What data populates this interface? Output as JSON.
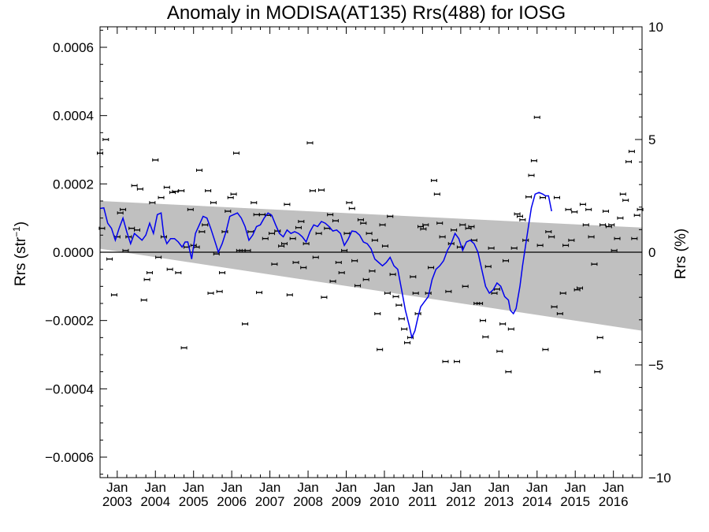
{
  "chart_data": {
    "type": "scatter",
    "title": "Anomaly in MODISA(AT135) Rrs(488) for IOSG",
    "ylabel_left_main": "Rrs (str",
    "ylabel_left_sup": "−1",
    "ylabel_left_close": ")",
    "ylabel_right": "Rrs (%)",
    "ylim_left": [
      -0.00066,
      0.00066
    ],
    "ylim_right": [
      -10,
      10
    ],
    "xlim": [
      2002.55,
      2016.75
    ],
    "left_ticks": [
      {
        "v": 0.0006,
        "label": "0.0006"
      },
      {
        "v": 0.0004,
        "label": "0.0004"
      },
      {
        "v": 0.0002,
        "label": "0.0002"
      },
      {
        "v": 0.0,
        "label": "0.0000"
      },
      {
        "v": -0.0002,
        "label": "−0.0002"
      },
      {
        "v": -0.0004,
        "label": "−0.0004"
      },
      {
        "v": -0.0006,
        "label": "−0.0006"
      }
    ],
    "right_ticks": [
      {
        "v": 10,
        "label": "10"
      },
      {
        "v": 5,
        "label": "5"
      },
      {
        "v": 0,
        "label": "0"
      },
      {
        "v": -5,
        "label": "−5"
      },
      {
        "v": -10,
        "label": "−10"
      }
    ],
    "x_ticks": [
      {
        "v": 2003,
        "month": "Jan",
        "year": "2003"
      },
      {
        "v": 2004,
        "month": "Jan",
        "year": "2004"
      },
      {
        "v": 2005,
        "month": "Jan",
        "year": "2005"
      },
      {
        "v": 2006,
        "month": "Jan",
        "year": "2006"
      },
      {
        "v": 2007,
        "month": "Jan",
        "year": "2007"
      },
      {
        "v": 2008,
        "month": "Jan",
        "year": "2008"
      },
      {
        "v": 2009,
        "month": "Jan",
        "year": "2009"
      },
      {
        "v": 2010,
        "month": "Jan",
        "year": "2010"
      },
      {
        "v": 2011,
        "month": "Jan",
        "year": "2011"
      },
      {
        "v": 2012,
        "month": "Jan",
        "year": "2012"
      },
      {
        "v": 2013,
        "month": "Jan",
        "year": "2013"
      },
      {
        "v": 2014,
        "month": "Jan",
        "year": "2014"
      },
      {
        "v": 2015,
        "month": "Jan",
        "year": "2015"
      },
      {
        "v": 2016,
        "month": "Jan",
        "year": "2016"
      }
    ],
    "reference_line": 0.0,
    "band": {
      "x": [
        2002.55,
        2016.75
      ],
      "upper": [
        0.00015,
        7.2e-05
      ],
      "lower": [
        1e-05,
        -0.00023
      ],
      "color": "#c0c0c0"
    },
    "points": [
      [
        2002.55,
        0.00029
      ],
      [
        2002.6,
        7e-05
      ],
      [
        2002.7,
        0.00033
      ],
      [
        2002.8,
        -2e-05
      ],
      [
        2002.92,
        -0.000125
      ],
      [
        2003.0,
        4.5e-05
      ],
      [
        2003.08,
        0.000115
      ],
      [
        2003.15,
        0.000125
      ],
      [
        2003.22,
        5e-06
      ],
      [
        2003.3,
        4.5e-05
      ],
      [
        2003.38,
        7e-05
      ],
      [
        2003.45,
        0.000195
      ],
      [
        2003.52,
        6.5e-05
      ],
      [
        2003.6,
        0.000185
      ],
      [
        2003.7,
        -0.00014
      ],
      [
        2003.78,
        -8e-05
      ],
      [
        2003.85,
        -6e-05
      ],
      [
        2003.92,
        0.000145
      ],
      [
        2004.0,
        0.00027
      ],
      [
        2004.08,
        -1.5e-05
      ],
      [
        2004.15,
        0.00016
      ],
      [
        2004.22,
        4.5e-05
      ],
      [
        2004.3,
        0.00019
      ],
      [
        2004.38,
        -5e-05
      ],
      [
        2004.45,
        0.000175
      ],
      [
        2004.52,
        0.000178
      ],
      [
        2004.6,
        -6e-05
      ],
      [
        2004.68,
        0.00018
      ],
      [
        2004.75,
        -0.00028
      ],
      [
        2004.82,
        1.5e-05
      ],
      [
        2004.92,
        0.000125
      ],
      [
        2005.0,
        2e-05
      ],
      [
        2005.08,
        1.5e-05
      ],
      [
        2005.15,
        0.00024
      ],
      [
        2005.22,
        6e-05
      ],
      [
        2005.3,
        8e-05
      ],
      [
        2005.38,
        0.00018
      ],
      [
        2005.45,
        -0.00012
      ],
      [
        2005.52,
        0.000145
      ],
      [
        2005.6,
        -5e-06
      ],
      [
        2005.68,
        -0.000115
      ],
      [
        2005.75,
        -6e-05
      ],
      [
        2005.82,
        6e-05
      ],
      [
        2005.9,
        0.00012
      ],
      [
        2005.97,
        0.00016
      ],
      [
        2006.05,
        0.00017
      ],
      [
        2006.12,
        0.00029
      ],
      [
        2006.2,
        5e-06
      ],
      [
        2006.28,
        5e-06
      ],
      [
        2006.35,
        -0.00021
      ],
      [
        2006.42,
        5e-06
      ],
      [
        2006.5,
        6e-05
      ],
      [
        2006.58,
        0.000145
      ],
      [
        2006.65,
        0.00011
      ],
      [
        2006.72,
        -0.000118
      ],
      [
        2006.8,
        0.00011
      ],
      [
        2006.88,
        4e-05
      ],
      [
        2006.95,
        0.000108
      ],
      [
        2007.05,
        5.5e-05
      ],
      [
        2007.12,
        -3.5e-05
      ],
      [
        2007.2,
        6.2e-05
      ],
      [
        2007.3,
        1.8e-05
      ],
      [
        2007.38,
        2.5e-05
      ],
      [
        2007.45,
        0.00014
      ],
      [
        2007.52,
        -0.000125
      ],
      [
        2007.6,
        4e-05
      ],
      [
        2007.68,
        -3e-05
      ],
      [
        2007.75,
        7.2e-05
      ],
      [
        2007.82,
        9e-05
      ],
      [
        2007.88,
        -4.5e-05
      ],
      [
        2007.95,
        2.5e-05
      ],
      [
        2008.05,
        0.00032
      ],
      [
        2008.12,
        0.00018
      ],
      [
        2008.2,
        -1.5e-05
      ],
      [
        2008.28,
        5.5e-05
      ],
      [
        2008.35,
        0.000182
      ],
      [
        2008.42,
        -0.000132
      ],
      [
        2008.5,
        7e-05
      ],
      [
        2008.58,
        0.00011
      ],
      [
        2008.65,
        -8.5e-05
      ],
      [
        2008.72,
        9.2e-05
      ],
      [
        2008.8,
        -3e-05
      ],
      [
        2008.88,
        -6e-05
      ],
      [
        2008.95,
        5e-06
      ],
      [
        2009.02,
        5.5e-05
      ],
      [
        2009.08,
        0.000145
      ],
      [
        2009.15,
        0.000128
      ],
      [
        2009.22,
        -2.5e-05
      ],
      [
        2009.3,
        -9.8e-05
      ],
      [
        2009.38,
        9.5e-05
      ],
      [
        2009.45,
        8.5e-05
      ],
      [
        2009.52,
        -8e-05
      ],
      [
        2009.6,
        5.5e-05
      ],
      [
        2009.68,
        -5.5e-05
      ],
      [
        2009.75,
        3.5e-05
      ],
      [
        2009.82,
        -0.00018
      ],
      [
        2009.88,
        -0.000285
      ],
      [
        2009.95,
        8e-05
      ],
      [
        2010.02,
        1.8e-05
      ],
      [
        2010.08,
        -0.00012
      ],
      [
        2010.15,
        0.000105
      ],
      [
        2010.22,
        -6.5e-05
      ],
      [
        2010.3,
        -0.00013
      ],
      [
        2010.38,
        -0.000155
      ],
      [
        2010.45,
        -0.000195
      ],
      [
        2010.52,
        -0.000225
      ],
      [
        2010.6,
        -0.000265
      ],
      [
        2010.68,
        -0.00025
      ],
      [
        2010.75,
        -7.2e-05
      ],
      [
        2010.82,
        -0.00012
      ],
      [
        2010.88,
        -0.00018
      ],
      [
        2010.95,
        7.5e-05
      ],
      [
        2011.02,
        6.8e-05
      ],
      [
        2011.08,
        8e-05
      ],
      [
        2011.15,
        -0.00012
      ],
      [
        2011.22,
        -4.5e-05
      ],
      [
        2011.3,
        0.00021
      ],
      [
        2011.38,
        0.00017
      ],
      [
        2011.45,
        8.5e-05
      ],
      [
        2011.52,
        4.5e-05
      ],
      [
        2011.6,
        -0.00032
      ],
      [
        2011.68,
        -0.000115
      ],
      [
        2011.75,
        2.5e-05
      ],
      [
        2011.82,
        6.5e-05
      ],
      [
        2011.9,
        -0.00032
      ],
      [
        2011.98,
        1.5e-05
      ],
      [
        2012.05,
        8e-05
      ],
      [
        2012.12,
        -0.0001
      ],
      [
        2012.2,
        7e-05
      ],
      [
        2012.28,
        7.5e-05
      ],
      [
        2012.35,
        3.5e-05
      ],
      [
        2012.42,
        -0.00015
      ],
      [
        2012.5,
        -0.00015
      ],
      [
        2012.58,
        -0.0002
      ],
      [
        2012.65,
        -0.000248
      ],
      [
        2012.72,
        -4.2e-05
      ],
      [
        2012.8,
        1.2e-05
      ],
      [
        2012.88,
        -0.00012
      ],
      [
        2012.95,
        -0.000108
      ],
      [
        2013.02,
        -0.00029
      ],
      [
        2013.1,
        -0.00021
      ],
      [
        2013.18,
        -2.5e-05
      ],
      [
        2013.25,
        -0.00035
      ],
      [
        2013.32,
        -0.000225
      ],
      [
        2013.4,
        1.2e-05
      ],
      [
        2013.48,
        0.000112
      ],
      [
        2013.55,
        0.000105
      ],
      [
        2013.62,
        9.5e-05
      ],
      [
        2013.7,
        3.5e-05
      ],
      [
        2013.78,
        0.000162
      ],
      [
        2013.85,
        0.000225
      ],
      [
        2013.92,
        0.000268
      ],
      [
        2014.0,
        0.000395
      ],
      [
        2014.08,
        2e-05
      ],
      [
        2014.15,
        0.00016
      ],
      [
        2014.22,
        -0.000285
      ],
      [
        2014.3,
        6e-05
      ],
      [
        2014.38,
        4.5e-05
      ],
      [
        2014.45,
        -0.00016
      ],
      [
        2014.52,
        0.00016
      ],
      [
        2014.6,
        -0.00018
      ],
      [
        2014.68,
        -0.00012
      ],
      [
        2014.75,
        2e-05
      ],
      [
        2014.82,
        0.000125
      ],
      [
        2014.9,
        3.5e-05
      ],
      [
        2014.98,
        0.000118
      ],
      [
        2015.05,
        -0.00011
      ],
      [
        2015.12,
        -0.000105
      ],
      [
        2015.2,
        0.00014
      ],
      [
        2015.28,
        8e-05
      ],
      [
        2015.35,
        0.000125
      ],
      [
        2015.42,
        4.5e-05
      ],
      [
        2015.5,
        -3.5e-05
      ],
      [
        2015.58,
        -0.00035
      ],
      [
        2015.65,
        -0.00025
      ],
      [
        2015.72,
        8e-05
      ],
      [
        2015.8,
        0.00012
      ],
      [
        2015.88,
        7.5e-05
      ],
      [
        2015.95,
        8e-05
      ],
      [
        2016.02,
        5e-06
      ],
      [
        2016.1,
        4e-05
      ],
      [
        2016.18,
        0.0001
      ],
      [
        2016.25,
        0.00017
      ],
      [
        2016.32,
        0.000152
      ],
      [
        2016.4,
        0.000265
      ],
      [
        2016.48,
        0.000295
      ],
      [
        2016.55,
        4e-05
      ],
      [
        2016.62,
        0.000108
      ],
      [
        2016.7,
        0.000125
      ]
    ],
    "smooth_line": [
      [
        2002.55,
        0.000128
      ],
      [
        2002.65,
        0.00013
      ],
      [
        2002.75,
        8.5e-05
      ],
      [
        2002.85,
        7e-05
      ],
      [
        2002.95,
        3.5e-05
      ],
      [
        2003.05,
        7e-05
      ],
      [
        2003.15,
        0.0001
      ],
      [
        2003.25,
        6e-05
      ],
      [
        2003.35,
        2.5e-05
      ],
      [
        2003.45,
        5.5e-05
      ],
      [
        2003.55,
        4.5e-05
      ],
      [
        2003.65,
        3.5e-05
      ],
      [
        2003.75,
        5e-05
      ],
      [
        2003.85,
        8.5e-05
      ],
      [
        2003.95,
        5.5e-05
      ],
      [
        2004.05,
        0.00011
      ],
      [
        2004.15,
        0.000115
      ],
      [
        2004.22,
        5e-05
      ],
      [
        2004.3,
        2.5e-05
      ],
      [
        2004.4,
        4e-05
      ],
      [
        2004.5,
        4e-05
      ],
      [
        2004.6,
        3e-05
      ],
      [
        2004.7,
        1.5e-05
      ],
      [
        2004.78,
        3e-05
      ],
      [
        2004.85,
        3e-05
      ],
      [
        2004.95,
        -2e-05
      ],
      [
        2005.05,
        5.5e-05
      ],
      [
        2005.15,
        8e-05
      ],
      [
        2005.25,
        0.000105
      ],
      [
        2005.35,
        0.0001
      ],
      [
        2005.45,
        7e-05
      ],
      [
        2005.55,
        3.5e-05
      ],
      [
        2005.65,
        0.0
      ],
      [
        2005.75,
        2.5e-05
      ],
      [
        2005.85,
        6e-05
      ],
      [
        2005.95,
        0.000105
      ],
      [
        2006.05,
        0.00011
      ],
      [
        2006.15,
        0.000115
      ],
      [
        2006.25,
        0.0001
      ],
      [
        2006.35,
        7.5e-05
      ],
      [
        2006.45,
        3.5e-05
      ],
      [
        2006.55,
        5e-05
      ],
      [
        2006.65,
        7.5e-05
      ],
      [
        2006.75,
        8e-05
      ],
      [
        2006.85,
        0.0001
      ],
      [
        2006.95,
        0.000115
      ],
      [
        2007.05,
        0.000108
      ],
      [
        2007.15,
        8e-05
      ],
      [
        2007.25,
        5.5e-05
      ],
      [
        2007.35,
        4.5e-05
      ],
      [
        2007.45,
        6.5e-05
      ],
      [
        2007.55,
        5.5e-05
      ],
      [
        2007.65,
        6e-05
      ],
      [
        2007.75,
        5.5e-05
      ],
      [
        2007.85,
        4.5e-05
      ],
      [
        2007.95,
        3e-05
      ],
      [
        2008.05,
        6e-05
      ],
      [
        2008.15,
        8e-05
      ],
      [
        2008.25,
        7.5e-05
      ],
      [
        2008.35,
        9e-05
      ],
      [
        2008.45,
        8.5e-05
      ],
      [
        2008.55,
        7.5e-05
      ],
      [
        2008.65,
        6.2e-05
      ],
      [
        2008.75,
        6.5e-05
      ],
      [
        2008.85,
        5.5e-05
      ],
      [
        2008.95,
        2e-05
      ],
      [
        2009.05,
        3.8e-05
      ],
      [
        2009.15,
        6.2e-05
      ],
      [
        2009.25,
        6e-05
      ],
      [
        2009.35,
        5e-05
      ],
      [
        2009.45,
        3e-05
      ],
      [
        2009.55,
        2.5e-05
      ],
      [
        2009.65,
        1e-05
      ],
      [
        2009.75,
        -2e-05
      ],
      [
        2009.85,
        -3e-05
      ],
      [
        2009.95,
        -4e-05
      ],
      [
        2010.05,
        -3e-05
      ],
      [
        2010.15,
        -1.5e-05
      ],
      [
        2010.25,
        -4e-05
      ],
      [
        2010.35,
        -5e-05
      ],
      [
        2010.45,
        -0.00011
      ],
      [
        2010.55,
        -0.00017
      ],
      [
        2010.65,
        -0.000215
      ],
      [
        2010.72,
        -0.00025
      ],
      [
        2010.8,
        -0.00023
      ],
      [
        2010.88,
        -0.00019
      ],
      [
        2010.95,
        -0.00016
      ],
      [
        2011.05,
        -0.000145
      ],
      [
        2011.15,
        -0.00013
      ],
      [
        2011.25,
        -8e-05
      ],
      [
        2011.35,
        -5e-05
      ],
      [
        2011.45,
        -4e-05
      ],
      [
        2011.55,
        -2.5e-05
      ],
      [
        2011.65,
        5e-06
      ],
      [
        2011.75,
        2.5e-05
      ],
      [
        2011.85,
        5.5e-05
      ],
      [
        2011.95,
        4e-05
      ],
      [
        2012.05,
        5e-06
      ],
      [
        2012.15,
        3e-05
      ],
      [
        2012.25,
        3.5e-05
      ],
      [
        2012.35,
        2.5e-05
      ],
      [
        2012.45,
        0.0
      ],
      [
        2012.55,
        -5e-05
      ],
      [
        2012.65,
        -0.0001
      ],
      [
        2012.75,
        -0.00012
      ],
      [
        2012.85,
        -0.00011
      ],
      [
        2012.95,
        -9e-05
      ],
      [
        2013.05,
        -0.0001
      ],
      [
        2013.15,
        -0.00013
      ],
      [
        2013.25,
        -0.00014
      ],
      [
        2013.3,
        -0.00017
      ],
      [
        2013.38,
        -0.00018
      ],
      [
        2013.45,
        -0.000165
      ],
      [
        2013.55,
        -0.0001
      ],
      [
        2013.62,
        -4e-05
      ],
      [
        2013.7,
        2e-05
      ],
      [
        2013.78,
        8e-05
      ],
      [
        2013.85,
        0.00013
      ],
      [
        2013.95,
        0.00017
      ],
      [
        2014.05,
        0.000175
      ],
      [
        2014.15,
        0.00017
      ],
      [
        2014.22,
        0.000165
      ],
      [
        2014.3,
        0.000165
      ],
      [
        2014.38,
        0.00012
      ]
    ],
    "colors": {
      "band": "#c0c0c0",
      "smooth_line": "#0000ee",
      "points": "#000000",
      "axes": "#000000"
    }
  }
}
